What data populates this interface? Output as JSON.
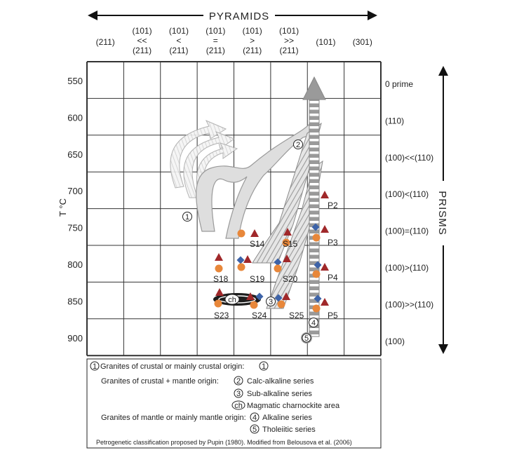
{
  "top_axis": {
    "title": "PYRAMIDS",
    "columns": [
      {
        "lines": [
          "(211)"
        ]
      },
      {
        "lines": [
          "(101)",
          "<<",
          "(211)"
        ]
      },
      {
        "lines": [
          "(101)",
          "<",
          "(211)"
        ]
      },
      {
        "lines": [
          "(101)",
          "=",
          "(211)"
        ]
      },
      {
        "lines": [
          "(101)",
          ">",
          "(211)"
        ]
      },
      {
        "lines": [
          "(101)",
          ">>",
          "(211)"
        ]
      },
      {
        "lines": [
          "(101)"
        ]
      },
      {
        "lines": [
          "(301)"
        ]
      }
    ]
  },
  "left_axis": {
    "title": "T °C",
    "ticks": [
      "550",
      "600",
      "650",
      "700",
      "750",
      "800",
      "850",
      "900"
    ]
  },
  "right_axis": {
    "title": "PRISMS",
    "rows": [
      "0 prime",
      "(110)",
      "(100)<<(110)",
      "(100)<(110)",
      "(100)=(110)",
      "(100)>(110)",
      "(100)>>(110)",
      "(100)"
    ]
  },
  "points": {
    "S14": "S14",
    "S15": "S15",
    "S18": "S18",
    "S19": "S19",
    "S20": "S20",
    "S23": "S23",
    "S24": "S24",
    "S25": "S25",
    "P2": "P2",
    "P3": "P3",
    "P4": "P4",
    "P5": "P5"
  },
  "markers": {
    "trend1": "1",
    "trend2": "2",
    "trend3": "3",
    "trend4": "4",
    "trend5": "5",
    "ch": "ch"
  },
  "legend": {
    "row1": {
      "num": "1",
      "text": "Granites of crustal or mainly crustal origin:",
      "num_after": "1"
    },
    "row2": {
      "text": "Granites of crustal + mantle origin:",
      "num": "2",
      "item": "Calc-alkaline series"
    },
    "row3": {
      "num": "3",
      "item": "Sub-alkaline series"
    },
    "row4": {
      "num": "ch",
      "item": "Magmatic charnockite area"
    },
    "row5": {
      "text": "Granites of mantle or mainly mantle origin:",
      "num": "4",
      "item": "Alkaline series"
    },
    "row6": {
      "num": "5",
      "item": "Tholeiitic series"
    },
    "credit": "Petrogenetic classification proposed by Pupin (1980). Modified from Belousova et al. (2006)"
  },
  "colors": {
    "triangle": "#a0282a",
    "circle": "#e8873a",
    "diamond": "#3d63a8",
    "arrow_fill": "#d8d8d8",
    "arrow_stripe": "#8a8a8a"
  }
}
